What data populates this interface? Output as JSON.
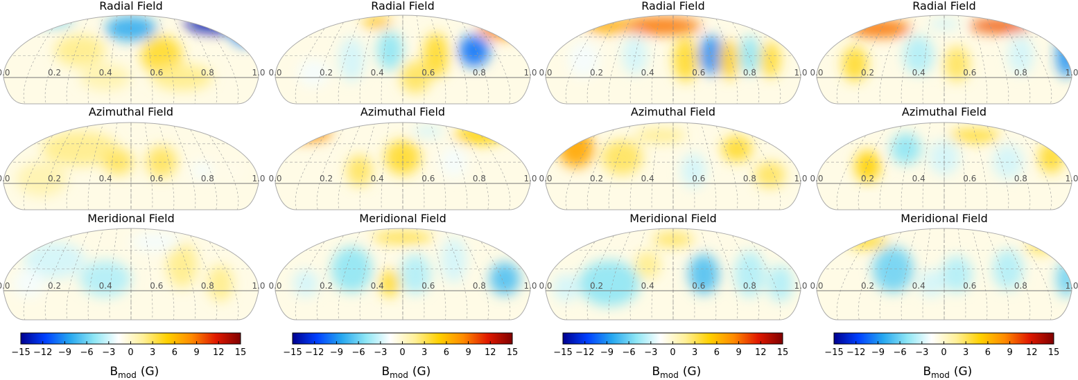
{
  "chart_data": {
    "type": "heatmap",
    "description_kind": "hemispheric Hammer-projection magnetic field maps",
    "columns": [
      {
        "panels": [
          {
            "title": "Radial Field",
            "blobs": [
              [
                0.5,
                0.85,
                -8,
                0.1,
                0.14
              ],
              [
                0.85,
                0.9,
                -14,
                0.14,
                0.1
              ],
              [
                0.95,
                0.82,
                -10,
                0.06,
                0.16
              ],
              [
                0.62,
                0.55,
                4,
                0.08,
                0.22
              ],
              [
                0.3,
                0.6,
                2,
                0.1,
                0.18
              ],
              [
                0.2,
                0.92,
                -6,
                0.08,
                0.05
              ],
              [
                0.7,
                0.3,
                2,
                0.12,
                0.15
              ],
              [
                0.4,
                0.3,
                1,
                0.1,
                0.15
              ]
            ]
          },
          {
            "title": "Azimuthal Field",
            "blobs": [
              [
                0.3,
                0.7,
                2,
                0.15,
                0.2
              ],
              [
                0.45,
                0.55,
                3,
                0.06,
                0.15
              ],
              [
                0.62,
                0.55,
                3,
                0.06,
                0.18
              ],
              [
                0.78,
                0.45,
                -2,
                0.04,
                0.1
              ],
              [
                0.9,
                0.45,
                -1,
                0.04,
                0.1
              ],
              [
                0.15,
                0.35,
                1,
                0.1,
                0.2
              ]
            ]
          },
          {
            "title": "Meridional Field",
            "blobs": [
              [
                0.2,
                0.65,
                -3,
                0.12,
                0.2
              ],
              [
                0.4,
                0.45,
                -4,
                0.1,
                0.2
              ],
              [
                0.7,
                0.6,
                2,
                0.06,
                0.25
              ],
              [
                0.85,
                0.4,
                2,
                0.05,
                0.2
              ],
              [
                0.6,
                0.85,
                -2,
                0.1,
                0.1
              ],
              [
                0.1,
                0.4,
                -2,
                0.06,
                0.15
              ]
            ]
          }
        ],
        "colorbar": {
          "ticks": [
            "−15",
            "−12",
            "−9",
            "−6",
            "−3",
            "0",
            "3",
            "6",
            "9",
            "12",
            "15"
          ],
          "label_main": "B",
          "label_sub": "mod",
          "label_unit": "(G)"
        }
      },
      {
        "panels": [
          {
            "title": "Radial Field",
            "blobs": [
              [
                0.4,
                0.92,
                6,
                0.06,
                0.06
              ],
              [
                0.88,
                0.85,
                8,
                0.08,
                0.12
              ],
              [
                0.78,
                0.6,
                -10,
                0.06,
                0.18
              ],
              [
                0.45,
                0.6,
                -5,
                0.05,
                0.22
              ],
              [
                0.3,
                0.5,
                -3,
                0.05,
                0.25
              ],
              [
                0.63,
                0.55,
                4,
                0.05,
                0.25
              ],
              [
                0.15,
                0.35,
                -2,
                0.06,
                0.15
              ],
              [
                0.55,
                0.3,
                3,
                0.06,
                0.18
              ]
            ]
          },
          {
            "title": "Azimuthal Field",
            "blobs": [
              [
                0.12,
                0.88,
                8,
                0.1,
                0.1
              ],
              [
                0.5,
                0.6,
                4,
                0.07,
                0.2
              ],
              [
                0.8,
                0.85,
                5,
                0.1,
                0.1
              ],
              [
                0.7,
                0.55,
                -2,
                0.05,
                0.18
              ],
              [
                0.33,
                0.45,
                3,
                0.05,
                0.18
              ],
              [
                0.6,
                0.9,
                -3,
                0.06,
                0.06
              ]
            ]
          },
          {
            "title": "Meridional Field",
            "blobs": [
              [
                0.3,
                0.55,
                -5,
                0.08,
                0.25
              ],
              [
                0.55,
                0.5,
                -4,
                0.06,
                0.22
              ],
              [
                0.45,
                0.4,
                4,
                0.04,
                0.15
              ],
              [
                0.9,
                0.45,
                -7,
                0.06,
                0.18
              ],
              [
                0.7,
                0.65,
                -3,
                0.05,
                0.25
              ],
              [
                0.5,
                0.9,
                4,
                0.12,
                0.06
              ],
              [
                0.12,
                0.4,
                -3,
                0.05,
                0.15
              ]
            ]
          }
        ],
        "colorbar": {
          "ticks": [
            "−15",
            "−12",
            "−9",
            "−6",
            "−3",
            "0",
            "3",
            "6",
            "9",
            "12",
            "15"
          ],
          "label_main": "B",
          "label_sub": "mod",
          "label_unit": "(G)"
        }
      },
      {
        "panels": [
          {
            "title": "Radial Field",
            "blobs": [
              [
                0.45,
                0.88,
                9,
                0.16,
                0.1
              ],
              [
                0.25,
                0.88,
                7,
                0.1,
                0.08
              ],
              [
                0.65,
                0.55,
                -9,
                0.05,
                0.22
              ],
              [
                0.8,
                0.55,
                -5,
                0.04,
                0.22
              ],
              [
                0.55,
                0.5,
                4,
                0.05,
                0.25
              ],
              [
                0.72,
                0.5,
                5,
                0.04,
                0.22
              ],
              [
                0.88,
                0.5,
                4,
                0.04,
                0.2
              ],
              [
                0.35,
                0.55,
                -3,
                0.05,
                0.22
              ],
              [
                0.15,
                0.5,
                -2,
                0.06,
                0.2
              ]
            ]
          },
          {
            "title": "Azimuthal Field",
            "blobs": [
              [
                0.12,
                0.7,
                7,
                0.07,
                0.22
              ],
              [
                0.3,
                0.6,
                3,
                0.08,
                0.2
              ],
              [
                0.58,
                0.45,
                -3,
                0.05,
                0.2
              ],
              [
                0.75,
                0.7,
                4,
                0.06,
                0.15
              ],
              [
                0.88,
                0.4,
                3,
                0.06,
                0.15
              ],
              [
                0.45,
                0.85,
                2,
                0.1,
                0.08
              ]
            ]
          },
          {
            "title": "Meridional Field",
            "blobs": [
              [
                0.25,
                0.4,
                -5,
                0.12,
                0.25
              ],
              [
                0.62,
                0.5,
                -7,
                0.06,
                0.22
              ],
              [
                0.5,
                0.88,
                3,
                0.08,
                0.08
              ],
              [
                0.8,
                0.5,
                -4,
                0.06,
                0.25
              ],
              [
                0.92,
                0.4,
                -4,
                0.05,
                0.2
              ],
              [
                0.4,
                0.6,
                2,
                0.05,
                0.15
              ],
              [
                0.08,
                0.35,
                -3,
                0.05,
                0.15
              ]
            ]
          }
        ],
        "colorbar": {
          "ticks": [
            "−15",
            "−12",
            "−9",
            "−6",
            "−3",
            "0",
            "3",
            "6",
            "9",
            "12",
            "15"
          ],
          "label_main": "B",
          "label_sub": "mod",
          "label_unit": "(G)"
        }
      },
      {
        "panels": [
          {
            "title": "Radial Field",
            "blobs": [
              [
                0.25,
                0.85,
                9,
                0.12,
                0.1
              ],
              [
                0.72,
                0.88,
                10,
                0.12,
                0.08
              ],
              [
                0.98,
                0.55,
                -9,
                0.04,
                0.25
              ],
              [
                0.4,
                0.55,
                -4,
                0.06,
                0.22
              ],
              [
                0.55,
                0.45,
                3,
                0.05,
                0.2
              ],
              [
                0.8,
                0.55,
                -3,
                0.05,
                0.22
              ],
              [
                0.15,
                0.45,
                4,
                0.05,
                0.2
              ],
              [
                0.5,
                0.9,
                -3,
                0.06,
                0.06
              ]
            ]
          },
          {
            "title": "Azimuthal Field",
            "blobs": [
              [
                0.35,
                0.7,
                -5,
                0.06,
                0.18
              ],
              [
                0.2,
                0.5,
                5,
                0.05,
                0.18
              ],
              [
                0.5,
                0.6,
                -3,
                0.06,
                0.2
              ],
              [
                0.75,
                0.55,
                -3,
                0.06,
                0.2
              ],
              [
                0.62,
                0.85,
                4,
                0.1,
                0.08
              ],
              [
                0.92,
                0.6,
                4,
                0.05,
                0.18
              ]
            ]
          },
          {
            "title": "Meridional Field",
            "blobs": [
              [
                0.3,
                0.55,
                -6,
                0.08,
                0.25
              ],
              [
                0.55,
                0.5,
                -4,
                0.06,
                0.2
              ],
              [
                0.2,
                0.85,
                4,
                0.08,
                0.08
              ],
              [
                0.75,
                0.55,
                -4,
                0.06,
                0.22
              ],
              [
                0.98,
                0.45,
                -6,
                0.04,
                0.2
              ],
              [
                0.45,
                0.4,
                -3,
                0.05,
                0.15
              ],
              [
                0.88,
                0.8,
                3,
                0.06,
                0.08
              ]
            ]
          }
        ],
        "colorbar": {
          "ticks": [
            "−15",
            "−12",
            "−9",
            "−6",
            "−3",
            "0",
            "3",
            "6",
            "9",
            "12",
            "15"
          ],
          "label_main": "B",
          "label_sub": "mod",
          "label_unit": "(G)"
        }
      }
    ],
    "phase_ticks": [
      "0.0",
      "0.2",
      "0.4",
      "0.6",
      "0.8",
      "1.0"
    ],
    "colorscale": {
      "min": -15,
      "max": 15,
      "stops": [
        "#00008f",
        "#0040ff",
        "#25a6f0",
        "#8ee6f5",
        "#ffffff",
        "#fff09a",
        "#ffd000",
        "#ff8a00",
        "#e01800",
        "#800000"
      ]
    }
  }
}
